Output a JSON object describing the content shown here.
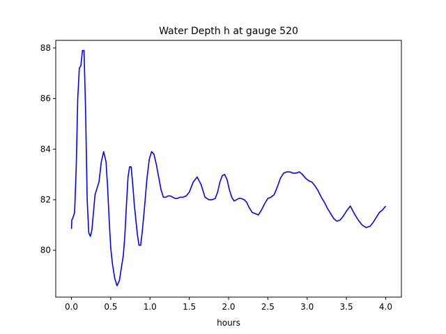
{
  "chart_data": {
    "type": "line",
    "title": "Water Depth h at gauge 520",
    "xlabel": "hours",
    "ylabel": "",
    "xlim": [
      -0.2,
      4.2
    ],
    "ylim": [
      78.15,
      88.3
    ],
    "xticks": [
      0.0,
      0.5,
      1.0,
      1.5,
      2.0,
      2.5,
      3.0,
      3.5,
      4.0
    ],
    "xtick_labels": [
      "0.0",
      "0.5",
      "1.0",
      "1.5",
      "2.0",
      "2.5",
      "3.0",
      "3.5",
      "4.0"
    ],
    "yticks": [
      80,
      82,
      84,
      86,
      88
    ],
    "ytick_labels": [
      "80",
      "82",
      "84",
      "86",
      "88"
    ],
    "grid": false,
    "legend": "none",
    "series": [
      {
        "color": "#0000ff",
        "x": [
          0.0,
          0.005,
          0.02,
          0.04,
          0.06,
          0.08,
          0.1,
          0.12,
          0.14,
          0.16,
          0.18,
          0.2,
          0.22,
          0.24,
          0.26,
          0.28,
          0.3,
          0.32,
          0.35,
          0.38,
          0.41,
          0.44,
          0.46,
          0.48,
          0.5,
          0.52,
          0.55,
          0.58,
          0.61,
          0.64,
          0.66,
          0.68,
          0.7,
          0.72,
          0.74,
          0.76,
          0.78,
          0.8,
          0.82,
          0.84,
          0.86,
          0.88,
          0.9,
          0.93,
          0.96,
          0.99,
          1.02,
          1.05,
          1.08,
          1.11,
          1.14,
          1.17,
          1.2,
          1.23,
          1.26,
          1.29,
          1.32,
          1.35,
          1.38,
          1.42,
          1.46,
          1.5,
          1.55,
          1.6,
          1.65,
          1.7,
          1.75,
          1.79,
          1.83,
          1.86,
          1.89,
          1.92,
          1.95,
          1.98,
          2.01,
          2.04,
          2.07,
          2.1,
          2.13,
          2.16,
          2.2,
          2.23,
          2.26,
          2.3,
          2.34,
          2.38,
          2.42,
          2.46,
          2.5,
          2.54,
          2.58,
          2.62,
          2.66,
          2.7,
          2.74,
          2.78,
          2.82,
          2.86,
          2.9,
          2.94,
          2.98,
          3.02,
          3.06,
          3.1,
          3.14,
          3.18,
          3.22,
          3.26,
          3.3,
          3.34,
          3.38,
          3.42,
          3.46,
          3.5,
          3.55,
          3.6,
          3.65,
          3.7,
          3.75,
          3.8,
          3.84,
          3.88,
          3.92,
          3.96,
          4.0
        ],
        "y": [
          80.85,
          81.2,
          81.3,
          81.5,
          83.2,
          86.0,
          87.2,
          87.3,
          87.9,
          87.9,
          85.5,
          82.0,
          80.7,
          80.55,
          80.8,
          81.5,
          82.2,
          82.4,
          82.7,
          83.5,
          83.9,
          83.5,
          82.5,
          81.2,
          80.1,
          79.5,
          78.9,
          78.6,
          78.8,
          79.4,
          79.8,
          80.6,
          81.8,
          82.9,
          83.3,
          83.3,
          82.6,
          81.8,
          81.2,
          80.6,
          80.2,
          80.2,
          80.7,
          81.7,
          82.8,
          83.6,
          83.9,
          83.8,
          83.4,
          82.9,
          82.4,
          82.1,
          82.1,
          82.15,
          82.15,
          82.1,
          82.05,
          82.05,
          82.1,
          82.1,
          82.15,
          82.3,
          82.7,
          82.9,
          82.6,
          82.1,
          82.0,
          82.0,
          82.05,
          82.3,
          82.7,
          82.95,
          83.0,
          82.8,
          82.4,
          82.1,
          81.95,
          82.0,
          82.05,
          82.05,
          82.0,
          81.9,
          81.7,
          81.5,
          81.45,
          81.4,
          81.6,
          81.85,
          82.05,
          82.1,
          82.2,
          82.5,
          82.85,
          83.05,
          83.1,
          83.1,
          83.05,
          83.05,
          83.1,
          83.0,
          82.85,
          82.75,
          82.7,
          82.55,
          82.35,
          82.1,
          81.9,
          81.65,
          81.45,
          81.25,
          81.15,
          81.2,
          81.35,
          81.55,
          81.75,
          81.45,
          81.2,
          81.0,
          80.9,
          80.95,
          81.1,
          81.3,
          81.5,
          81.6,
          81.75
        ]
      }
    ]
  }
}
